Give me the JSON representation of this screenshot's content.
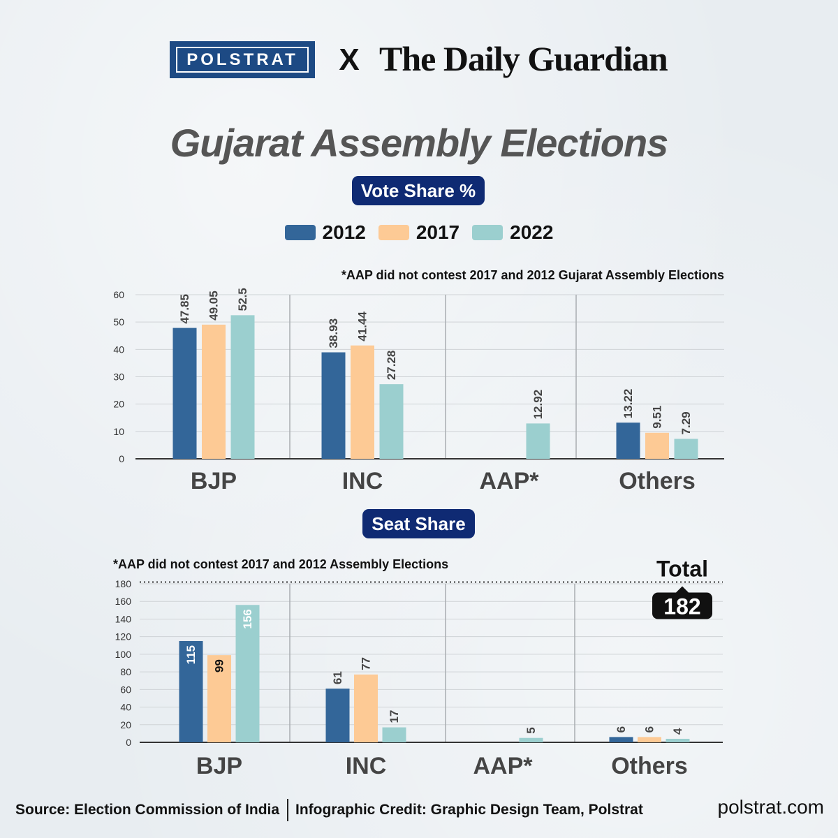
{
  "header": {
    "partner_left": "POLSTRAT",
    "separator": "X",
    "partner_right": "The Daily Guardian"
  },
  "title": "Gujarat Assembly Elections",
  "legend": {
    "items": [
      {
        "label": "2012",
        "color": "#336699"
      },
      {
        "label": "2017",
        "color": "#fdca95"
      },
      {
        "label": "2022",
        "color": "#9bcfcf"
      }
    ]
  },
  "footer": {
    "source": "Source: Election Commission of India",
    "credit": "Infographic Credit: Graphic Design Team, Polstrat",
    "site": "polstrat.com"
  },
  "chart_data": [
    {
      "type": "bar",
      "title": "Vote Share %",
      "note": "*AAP did not contest 2017 and 2012 Gujarat Assembly Elections",
      "categories": [
        "BJP",
        "INC",
        "AAP*",
        "Others"
      ],
      "ylim": [
        0,
        60
      ],
      "yticks": [
        0,
        10,
        20,
        30,
        40,
        50,
        60
      ],
      "grid": true,
      "legend_position": "top-center",
      "series": [
        {
          "name": "2012",
          "color": "#336699",
          "values": [
            47.85,
            38.93,
            null,
            13.22
          ],
          "labels": [
            "47.85",
            "38.93",
            "",
            "13.22"
          ]
        },
        {
          "name": "2017",
          "color": "#fdca95",
          "values": [
            49.05,
            41.44,
            null,
            9.51
          ],
          "labels": [
            "49.05",
            "41.44",
            "",
            "9.51"
          ]
        },
        {
          "name": "2022",
          "color": "#9bcfcf",
          "values": [
            52.5,
            27.28,
            12.92,
            7.29
          ],
          "labels": [
            "52.5",
            "27.28",
            "12.92",
            "7.29"
          ]
        }
      ]
    },
    {
      "type": "bar",
      "title": "Seat Share",
      "note": "*AAP did not contest 2017 and 2012 Assembly Elections",
      "categories": [
        "BJP",
        "INC",
        "AAP*",
        "Others"
      ],
      "ylim": [
        0,
        180
      ],
      "yticks": [
        0,
        20,
        40,
        60,
        80,
        100,
        120,
        140,
        160,
        180
      ],
      "grid": true,
      "reference_line": {
        "label": "Total",
        "value": 182,
        "value_label": "182"
      },
      "series": [
        {
          "name": "2012",
          "color": "#336699",
          "values": [
            115,
            61,
            null,
            6
          ],
          "labels": [
            "115",
            "61",
            "",
            "6"
          ]
        },
        {
          "name": "2017",
          "color": "#fdca95",
          "values": [
            99,
            77,
            null,
            6
          ],
          "labels": [
            "99",
            "77",
            "",
            "6"
          ]
        },
        {
          "name": "2022",
          "color": "#9bcfcf",
          "values": [
            156,
            17,
            5,
            4
          ],
          "labels": [
            "156",
            "17",
            "5",
            "4"
          ]
        }
      ]
    }
  ]
}
